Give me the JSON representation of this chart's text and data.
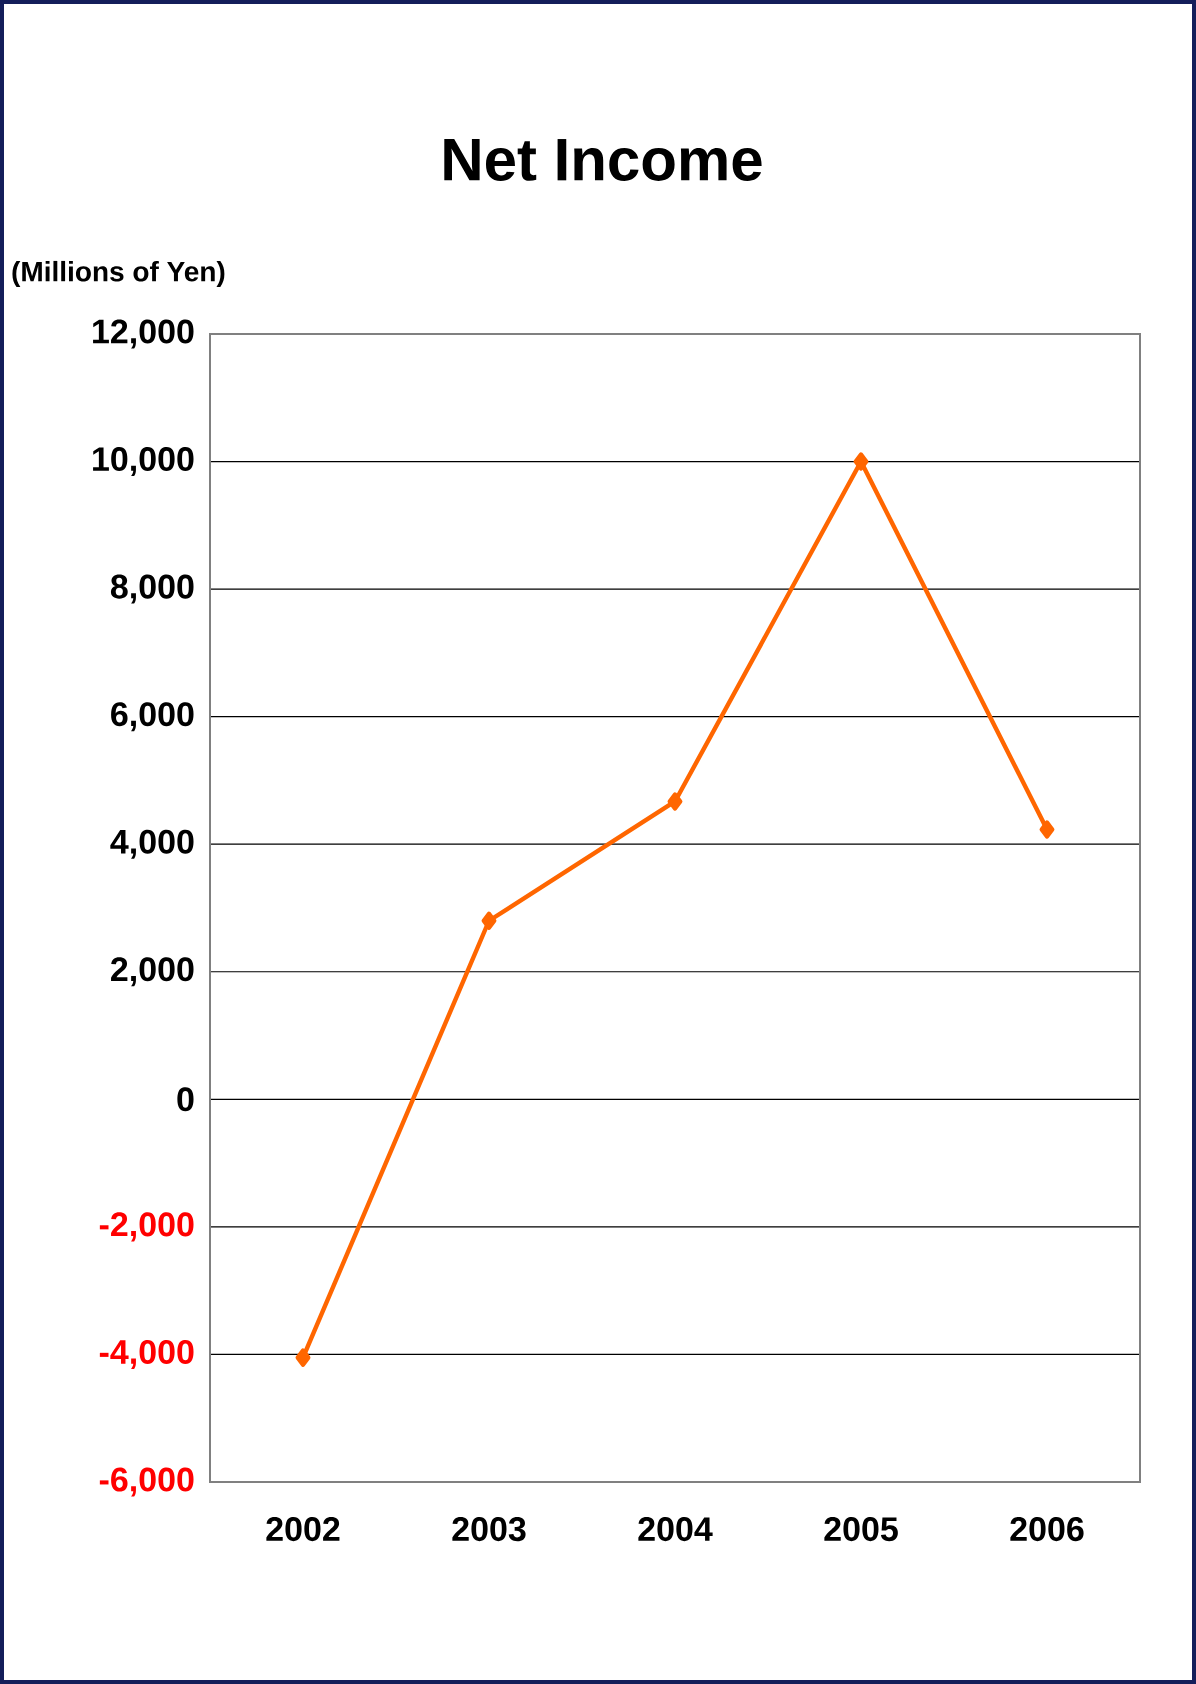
{
  "chart_data": {
    "type": "line",
    "title": "Net Income",
    "ylabel": "(Millions of Yen)",
    "categories": [
      "2002",
      "2003",
      "2004",
      "2005",
      "2006"
    ],
    "series": [
      {
        "color": "#ff6600",
        "values": [
          -4050,
          2800,
          4670,
          10000,
          4230
        ]
      }
    ],
    "ylim": [
      -6000,
      12000
    ],
    "yticks": [
      {
        "value": -6000,
        "label": "-6,000"
      },
      {
        "value": -4000,
        "label": "-4,000"
      },
      {
        "value": -2000,
        "label": "-2,000"
      },
      {
        "value": 0,
        "label": "0"
      },
      {
        "value": 2000,
        "label": "2,000"
      },
      {
        "value": 4000,
        "label": "4,000"
      },
      {
        "value": 6000,
        "label": "6,000"
      },
      {
        "value": 8000,
        "label": "8,000"
      },
      {
        "value": 10000,
        "label": "10,000"
      },
      {
        "value": 12000,
        "label": "12,000"
      }
    ],
    "grid": "y",
    "marker": "diamond",
    "line_style": "solid"
  }
}
